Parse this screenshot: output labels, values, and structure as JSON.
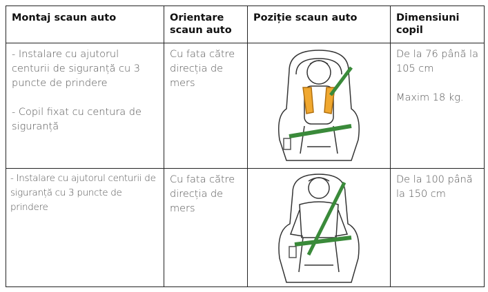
{
  "table": {
    "header": [
      "Montaj scaun auto",
      "Orientare scaun auto",
      "Poziție scaun auto",
      "Dimensiuni copil"
    ],
    "rows": [
      {
        "mounting": [
          "- Instalare cu ajutorul centurii de siguranță cu 3 puncte de prindere",
          "- Copil fixat cu centura de siguranță"
        ],
        "orientation": [
          "Cu fata către direcția de mers"
        ],
        "size": [
          "De la 76 până la 105 cm",
          "Maxim 18 kg."
        ]
      },
      {
        "mounting": [
          "- Instalare cu ajutorul centurii de siguranță cu 3 puncte de prindere"
        ],
        "orientation": [
          "Cu fata către direcția de mers"
        ],
        "size": [
          "De la 100 până la 150 cm"
        ]
      }
    ]
  }
}
